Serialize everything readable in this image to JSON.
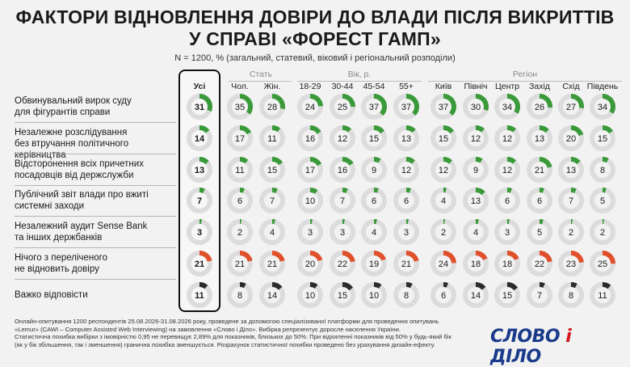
{
  "title_line1": "ФАКТОРИ ВІДНОВЛЕННЯ ДОВІРИ ДО ВЛАДИ ПІСЛЯ ВИКРИТТІВ",
  "title_line2": "У СПРАВІ «ФОРЕСТ ГАМП»",
  "subtitle": "N = 1200, % (загальний, статевий, віковий і регіональний розподіли)",
  "groups": {
    "sex": "Стать",
    "age": "Вік, р.",
    "region": "Регіон"
  },
  "columns": [
    "Усі",
    "Чол.",
    "Жін.",
    "18-29",
    "30-44",
    "45-54",
    "55+",
    "Київ",
    "Північ",
    "Центр",
    "Захід",
    "Схід",
    "Південь"
  ],
  "rows": [
    "Обвинувальний вирок суду для фігурантів справи",
    "Незалежне розслідування без втручання політичного керівництва",
    "Відсторонення всіх причетних посадовців від держслужби",
    "Публічний звіт влади про вжиті системні заходи",
    "Незалежний аудит Sense Bank та інших держбанків",
    "Нічого з переліченого не відновить довіру",
    "Важко відповісти"
  ],
  "row_labels": [
    [
      "Обвинувальний вирок суду",
      "для фігурантів справи"
    ],
    [
      "Незалежне розслідування",
      "без втручання політичного керівництва"
    ],
    [
      "Відсторонення всіх причетних",
      "посадовців від держслужби"
    ],
    [
      "Публічний звіт влади про вжиті",
      "системні заходи"
    ],
    [
      "Незалежний аудит Sense Bank",
      "та інших держбанків"
    ],
    [
      "Нічого з переліченого",
      "не відновить довіру"
    ],
    [
      "Важко відповісти"
    ]
  ],
  "colors": {
    "positive": "#3a9a3a",
    "negative": "#e0502a",
    "undecided": "#2b2b2b",
    "track": "#dcdcdc"
  },
  "chart_data": {
    "type": "table",
    "unit": "%",
    "categories": [
      "Усі",
      "Чол.",
      "Жін.",
      "18-29",
      "30-44",
      "45-54",
      "55+",
      "Київ",
      "Північ",
      "Центр",
      "Захід",
      "Схід",
      "Південь"
    ],
    "series": [
      {
        "name": "Обвинувальний вирок суду для фігурантів справи",
        "kind": "positive",
        "values": [
          31,
          35,
          28,
          24,
          25,
          37,
          37,
          37,
          30,
          34,
          26,
          27,
          34
        ]
      },
      {
        "name": "Незалежне розслідування без втручання політичного керівництва",
        "kind": "positive",
        "values": [
          14,
          17,
          11,
          16,
          12,
          15,
          13,
          15,
          12,
          12,
          13,
          20,
          15
        ]
      },
      {
        "name": "Відсторонення всіх причетних посадовців від держслужби",
        "kind": "positive",
        "values": [
          13,
          11,
          15,
          17,
          16,
          9,
          12,
          12,
          9,
          12,
          21,
          13,
          8
        ]
      },
      {
        "name": "Публічний звіт влади про вжиті системні заходи",
        "kind": "positive",
        "values": [
          7,
          6,
          7,
          10,
          7,
          6,
          6,
          4,
          13,
          6,
          6,
          7,
          5
        ]
      },
      {
        "name": "Незалежний аудит Sense Bank та інших держбанків",
        "kind": "positive",
        "values": [
          3,
          2,
          4,
          3,
          3,
          4,
          3,
          2,
          4,
          3,
          5,
          2,
          2
        ]
      },
      {
        "name": "Нічого з переліченого не відновить довіру",
        "kind": "negative",
        "values": [
          21,
          21,
          21,
          20,
          22,
          19,
          21,
          24,
          18,
          18,
          22,
          23,
          25
        ]
      },
      {
        "name": "Важко відповісти",
        "kind": "undecided",
        "values": [
          11,
          8,
          14,
          10,
          15,
          10,
          8,
          6,
          14,
          15,
          7,
          8,
          11
        ]
      }
    ]
  },
  "footnote": [
    "Онлайн-опитування 1200 респондентів 25.08.2026-31.08.2026 року, проведене за допомогою спеціалізованої платформи для проведення опитувань",
    "«Lemur» (CAWI – Computer Assisted Web Interviewing) на замовлення «Слово і Діло». Вибірка репрезентує доросле населення України.",
    "Статистична похибка вибірки з імовірністю 0,95 не перевищує 2,89% для показників, близьких до 50%. При відхиленні показників від 50% у будь-який бік",
    "(як у бік збільшення, так і зменшення) гранична похибка зменшується. Розрахунок статистичної похибки проведено без урахування дизайн-ефекту."
  ],
  "logo": {
    "word1": "СЛОВО",
    "amp": "і",
    "word2": "ДІЛО"
  }
}
